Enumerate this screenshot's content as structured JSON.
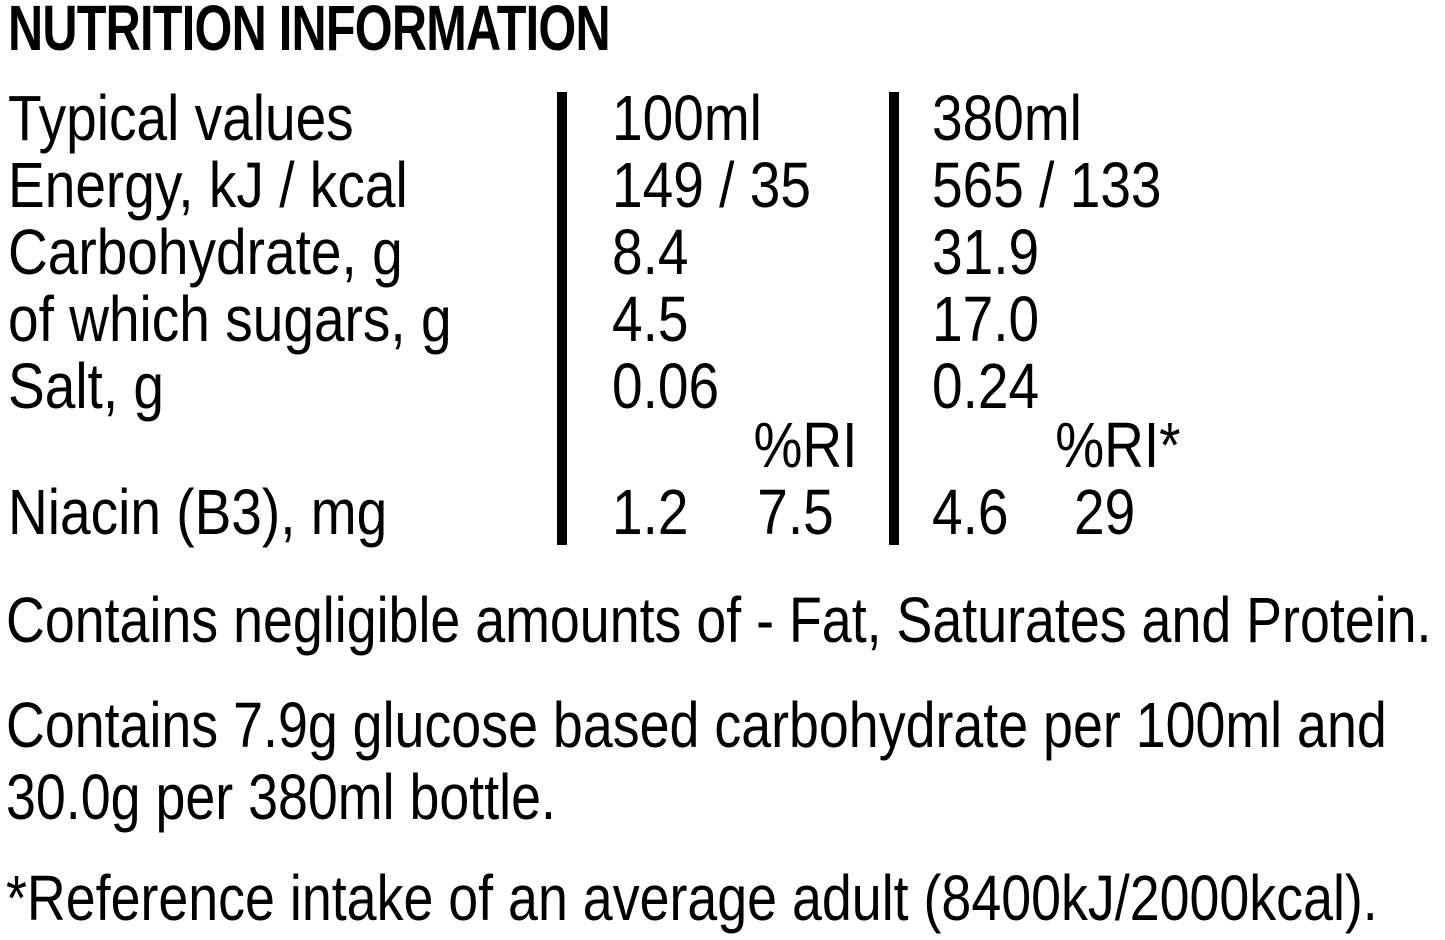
{
  "title": "NUTRITION INFORMATION",
  "colors": {
    "text": "#000000",
    "background": "#ffffff",
    "divider": "#000000"
  },
  "table": {
    "header": {
      "label": "Typical values",
      "serving1": "100ml",
      "serving2": "380ml"
    },
    "rows": [
      {
        "label": "Energy, kJ / kcal",
        "per100": "149 / 35",
        "per380": "565 / 133"
      },
      {
        "label": "Carbohydrate, g",
        "per100": "8.4",
        "per380": "31.9"
      },
      {
        "label": "of which sugars, g",
        "per100": "4.5",
        "per380": "17.0"
      },
      {
        "label": "Salt, g",
        "per100": "0.06",
        "per380": "0.24"
      }
    ],
    "ri_header": {
      "col1": "%RI",
      "col2": "%RI*"
    },
    "vitamin_row": {
      "label": "Niacin (B3), mg",
      "per100": "1.2",
      "ri100": "7.5",
      "per380": "4.6",
      "ri380": "29"
    }
  },
  "notes": {
    "negligible": "Contains negligible amounts of - Fat, Saturates and Protein.",
    "glucose": "Contains 7.9g glucose based carbohydrate per 100ml and\n30.0g per 380ml bottle.",
    "reference": "*Reference intake of an average adult (8400kJ/2000kcal)."
  }
}
